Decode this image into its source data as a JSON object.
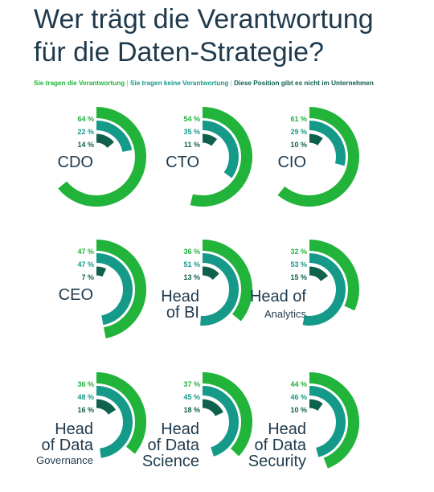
{
  "title_lines": [
    "Wer trägt die Verantwortung",
    "für die Daten-Strategie?"
  ],
  "legend": {
    "items": [
      "Sie tragen die Verantwortung",
      "Sie tragen keine Verantwortung",
      "Diese Position gibt es nicht im Unternehmen"
    ],
    "separator": "|"
  },
  "colors": {
    "responsible": "#22b33a",
    "not_responsible": "#159a8a",
    "not_existing": "#10604e",
    "title": "#1f3a4d"
  },
  "chart_data": {
    "type": "radial-bar",
    "series": [
      {
        "name": "Sie tragen die Verantwortung",
        "color": "#22b33a"
      },
      {
        "name": "Sie tragen keine Verantwortung",
        "color": "#159a8a"
      },
      {
        "name": "Diese Position gibt es nicht im Unternehmen",
        "color": "#10604e"
      }
    ],
    "panels": [
      {
        "role": [
          "CDO"
        ],
        "values": [
          64,
          22,
          14
        ],
        "labels": [
          "64 %",
          "22 %",
          "14 %"
        ]
      },
      {
        "role": [
          "CTO"
        ],
        "values": [
          54,
          35,
          11
        ],
        "labels": [
          "54 %",
          "35 %",
          "11 %"
        ]
      },
      {
        "role": [
          "CIO"
        ],
        "values": [
          61,
          29,
          10
        ],
        "labels": [
          "61 %",
          "29 %",
          "10 %"
        ]
      },
      {
        "role": [
          "CEO"
        ],
        "values": [
          47,
          47,
          7
        ],
        "labels": [
          "47 %",
          "47 %",
          "7 %"
        ]
      },
      {
        "role": [
          "Head",
          "of BI"
        ],
        "values": [
          36,
          51,
          13
        ],
        "labels": [
          "36 %",
          "51 %",
          "13 %"
        ]
      },
      {
        "role": [
          "Head of",
          "Analytics"
        ],
        "values": [
          32,
          53,
          15
        ],
        "labels": [
          "32 %",
          "53 %",
          "15 %"
        ]
      },
      {
        "role": [
          "Head",
          "of Data",
          "Governance"
        ],
        "values": [
          36,
          48,
          16
        ],
        "labels": [
          "36 %",
          "48 %",
          "16 %"
        ]
      },
      {
        "role": [
          "Head",
          "of Data",
          "Science"
        ],
        "values": [
          37,
          45,
          18
        ],
        "labels": [
          "37 %",
          "45 %",
          "18 %"
        ]
      },
      {
        "role": [
          "Head",
          "of Data",
          "Security"
        ],
        "values": [
          44,
          46,
          10
        ],
        "labels": [
          "44 %",
          "46 %",
          "10 %"
        ]
      }
    ]
  }
}
